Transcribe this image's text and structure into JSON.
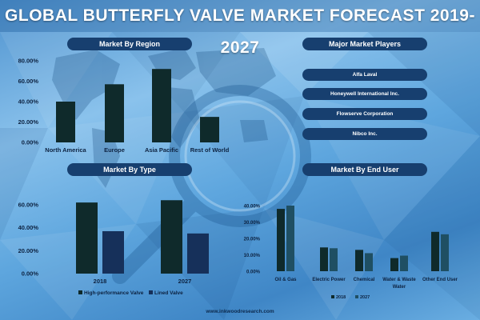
{
  "title": "GLOBAL BUTTERFLY VALVE MARKET FORECAST 2019-2027",
  "footer": "www.inkwoodresearch.com",
  "colors": {
    "bar_dark": "#0f2a2b",
    "bar_navy": "#16305a",
    "bar_teal": "#1f4f63",
    "pill": "#173f6f"
  },
  "players": {
    "heading": "Major Market Players",
    "items": [
      "Alfa Laval",
      "Honeywell International Inc.",
      "Flowserve Corporation",
      "Nibco Inc."
    ]
  },
  "chart_data": [
    {
      "id": "region",
      "type": "bar",
      "title": "Market By Region",
      "categories": [
        "North America",
        "Europe",
        "Asia Pacific",
        "Rest of World"
      ],
      "values": [
        40,
        57,
        72,
        25
      ],
      "ylim": [
        0,
        80
      ],
      "yticks": [
        "0.00%",
        "20.00%",
        "40.00%",
        "60.00%",
        "80.00%"
      ],
      "grid": false
    },
    {
      "id": "type",
      "type": "bar",
      "title": "Market By Type",
      "categories": [
        "2018",
        "2027"
      ],
      "series": [
        {
          "name": "High-performance Valve",
          "values": [
            62,
            64
          ]
        },
        {
          "name": "Lined Valve",
          "values": [
            37,
            35
          ]
        }
      ],
      "ylim": [
        0,
        60
      ],
      "yticks": [
        "0.00%",
        "20.00%",
        "40.00%",
        "60.00%"
      ],
      "legend": "bottom",
      "grid": false
    },
    {
      "id": "enduser",
      "type": "bar",
      "title": "Market By End User",
      "categories": [
        "Oil & Gas",
        "Electric Power",
        "Chemical",
        "Water & Waste Water",
        "Other End User"
      ],
      "category_lines": [
        [
          "Oil & Gas"
        ],
        [
          "Electric Power"
        ],
        [
          "Chemical"
        ],
        [
          "Water & Waste",
          "Water"
        ],
        [
          "Other End User"
        ]
      ],
      "series": [
        {
          "name": "2018",
          "values": [
            38,
            14.5,
            13,
            8,
            24
          ]
        },
        {
          "name": "2027",
          "values": [
            40,
            14,
            11,
            9.5,
            22.5
          ]
        }
      ],
      "ylim": [
        0,
        40
      ],
      "yticks": [
        "0.00%",
        "10.00%",
        "20.00%",
        "30.00%",
        "40.00%"
      ],
      "legend": "bottom",
      "grid": false
    }
  ]
}
